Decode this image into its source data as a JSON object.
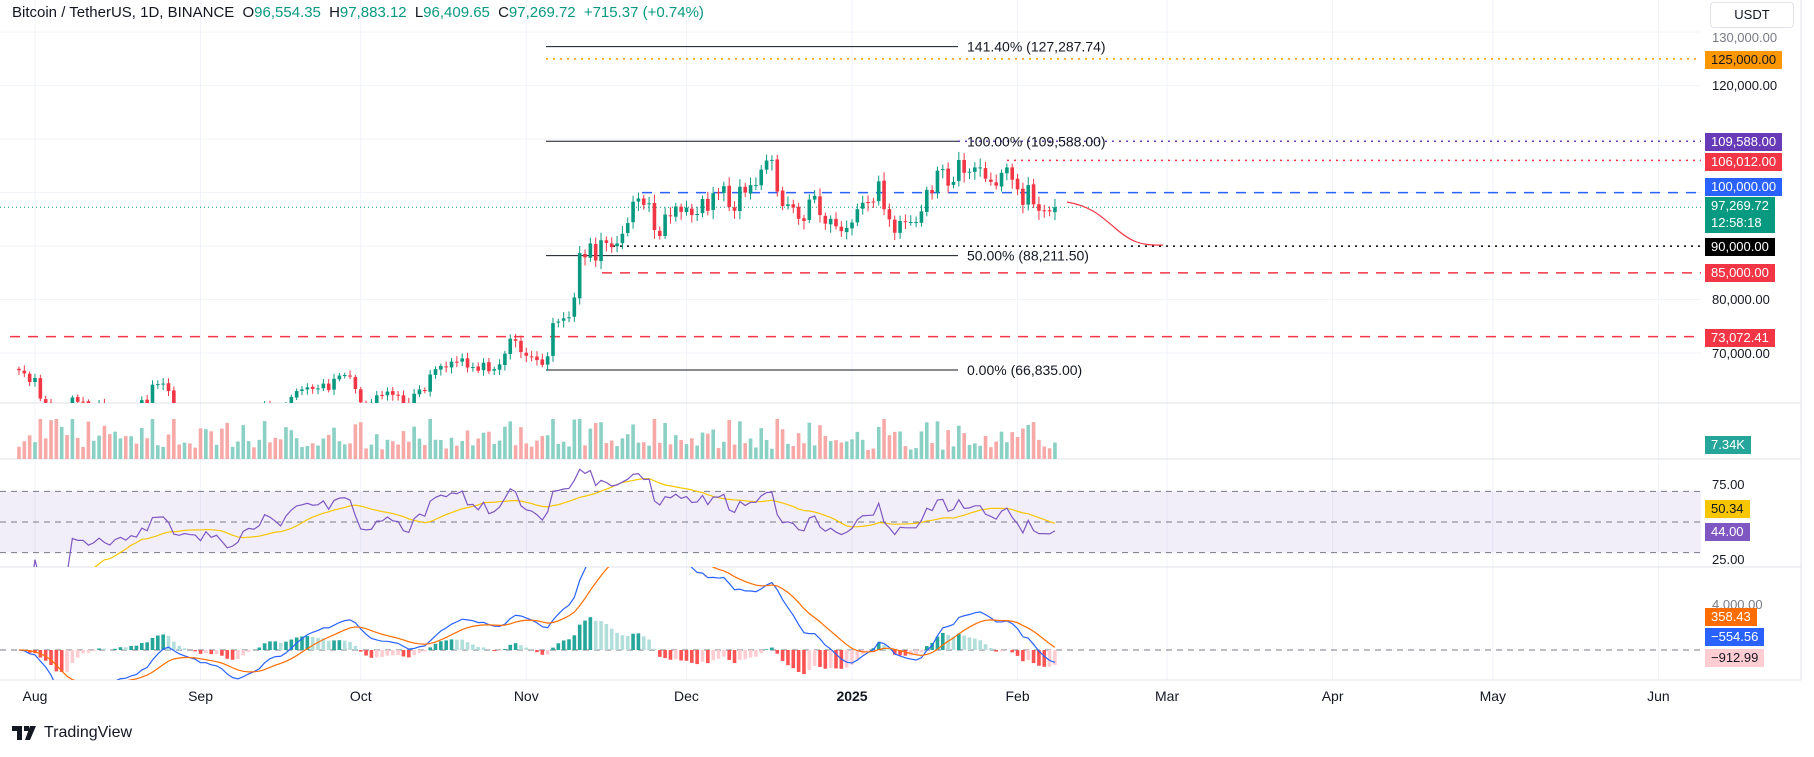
{
  "header": {
    "symbol": "Bitcoin / TetherUS, 1D, BINANCE",
    "o_label": "O",
    "o": "96,554.35",
    "h_label": "H",
    "h": "97,883.12",
    "l_label": "L",
    "l": "96,409.65",
    "c_label": "C",
    "c": "97,269.72",
    "change": "+715.37 (+0.74%)"
  },
  "currency_button": "USDT",
  "branding": "TradingView",
  "colors": {
    "up": "#089981",
    "down": "#f23645",
    "rsi": "#7e57c2",
    "rsi_ma": "#f7c600",
    "macd": "#2962ff",
    "signal": "#ff6d00"
  },
  "price_axis": {
    "ticks": [
      "130,000.00",
      "120,000.00",
      "80,000.00",
      "70,000.00"
    ]
  },
  "badges": {
    "b125": {
      "text": "125,000.00",
      "color": "#ff9800"
    },
    "b109": {
      "text": "109,588.00",
      "color": "#673ab7"
    },
    "b106": {
      "text": "106,012.00",
      "color": "#f23645"
    },
    "b100": {
      "text": "100,000.00",
      "color": "#2962ff"
    },
    "last": {
      "text": "97,269.72",
      "timer": "12:58:18",
      "color": "#089981"
    },
    "b90": {
      "text": "90,000.00",
      "color": "#000000"
    },
    "b85": {
      "text": "85,000.00",
      "color": "#f23645"
    },
    "b73": {
      "text": "73,072.41",
      "color": "#f23645"
    },
    "volume": {
      "text": "7.34K",
      "color": "#26a69a"
    },
    "rsi_ma": {
      "text": "50.34",
      "color": "#f7c600"
    },
    "rsi": {
      "text": "44.00",
      "color": "#7e57c2"
    },
    "signal": {
      "text": "358.43",
      "color": "#ff6d00"
    },
    "macd": {
      "text": "−554.56",
      "color": "#2962ff"
    },
    "hist": {
      "text": "−912.99",
      "color": "#ffcdd2"
    }
  },
  "rsi_axis": {
    "ticks": [
      "75.00",
      "25.00"
    ]
  },
  "macd_axis": {
    "ticks": [
      "4,000.00"
    ]
  },
  "fibonacci": [
    {
      "label": "141.40% (127,287.74)",
      "price": 127287.74
    },
    {
      "label": "100.00% (109,588.00)",
      "price": 109588
    },
    {
      "label": "50.00% (88,211.50)",
      "price": 88211.5
    },
    {
      "label": "0.00% (66,835.00)",
      "price": 66835
    }
  ],
  "time_axis": [
    {
      "label": "Aug",
      "date": "2024-08-01"
    },
    {
      "label": "Sep",
      "date": "2024-09-01"
    },
    {
      "label": "Oct",
      "date": "2024-10-01"
    },
    {
      "label": "Nov",
      "date": "2024-11-01"
    },
    {
      "label": "Dec",
      "date": "2024-12-01"
    },
    {
      "label": "2025",
      "date": "2025-01-01"
    },
    {
      "label": "Feb",
      "date": "2025-02-01"
    },
    {
      "label": "Mar",
      "date": "2025-03-01"
    },
    {
      "label": "Apr",
      "date": "2025-04-01"
    },
    {
      "label": "May",
      "date": "2025-05-01"
    },
    {
      "label": "Jun",
      "date": "2025-06-01"
    }
  ],
  "chart_data": {
    "type": "candlestick",
    "interval": "1D",
    "first_date": "2024-07-29",
    "closes": [
      66800,
      66200,
      64600,
      65350,
      61500,
      60700,
      58100,
      54000,
      56000,
      55100,
      61700,
      60900,
      60900,
      58700,
      59350,
      60600,
      58700,
      57500,
      58900,
      59500,
      58400,
      59500,
      59000,
      61200,
      60400,
      64100,
      64200,
      64300,
      62900,
      59400,
      59000,
      59400,
      59100,
      58950,
      57300,
      59100,
      57500,
      57900,
      56100,
      53900,
      54200,
      54900,
      57000,
      57600,
      57400,
      58100,
      60500,
      60000,
      59200,
      58200,
      60300,
      61800,
      62900,
      63200,
      63600,
      63300,
      63400,
      64300,
      63100,
      65200,
      65800,
      65900,
      65600,
      63300,
      60800,
      60600,
      60700,
      62100,
      62100,
      62800,
      62200,
      62100,
      60600,
      60300,
      62400,
      63200,
      62900,
      66000,
      67000,
      67600,
      67400,
      68400,
      68300,
      69000,
      67300,
      67400,
      66700,
      68200,
      66600,
      67000,
      67900,
      69900,
      72700,
      72300,
      70200,
      69500,
      69300,
      68700,
      67800,
      69400,
      75600,
      75900,
      76500,
      76700,
      80400,
      88700,
      87900,
      90500,
      87300,
      91100,
      90600,
      89800,
      90500,
      92300,
      94300,
      98300,
      98900,
      97700,
      98000,
      93000,
      91900,
      95900,
      95600,
      97400,
      96400,
      97200,
      95800,
      96000,
      98800,
      96600,
      99900,
      99900,
      101200,
      97300,
      96600,
      101100,
      100000,
      101400,
      101400,
      104300,
      106000,
      106100,
      100200,
      97500,
      97800,
      97200,
      95100,
      94700,
      98700,
      99400,
      95800,
      94200,
      95100,
      93700,
      92800,
      93400,
      94400,
      96900,
      98100,
      98200,
      98300,
      102100,
      96900,
      95000,
      92500,
      94700,
      94500,
      94500,
      94500,
      96500,
      100500,
      99900,
      104100,
      104400,
      101300,
      102000,
      106100,
      103700,
      103900,
      104700,
      104700,
      102600,
      102000,
      101300,
      103700,
      104700,
      102400,
      100600,
      97700,
      101400,
      97800,
      96600,
      96600,
      96500,
      97269.72
    ],
    "horizontal_levels": [
      125000,
      109588,
      106012,
      100000,
      97269.72,
      90000,
      85000,
      73072.41
    ],
    "indicators": [
      "Volume",
      "RSI 14 (SMA 14)",
      "MACD 12 26 9"
    ],
    "rsi_bands": [
      70,
      50,
      30
    ],
    "last_values": {
      "volume": "7.34K",
      "rsi": 44.0,
      "rsi_ma": 50.34,
      "macd": -554.56,
      "signal": 358.43,
      "histogram": -912.99
    }
  }
}
